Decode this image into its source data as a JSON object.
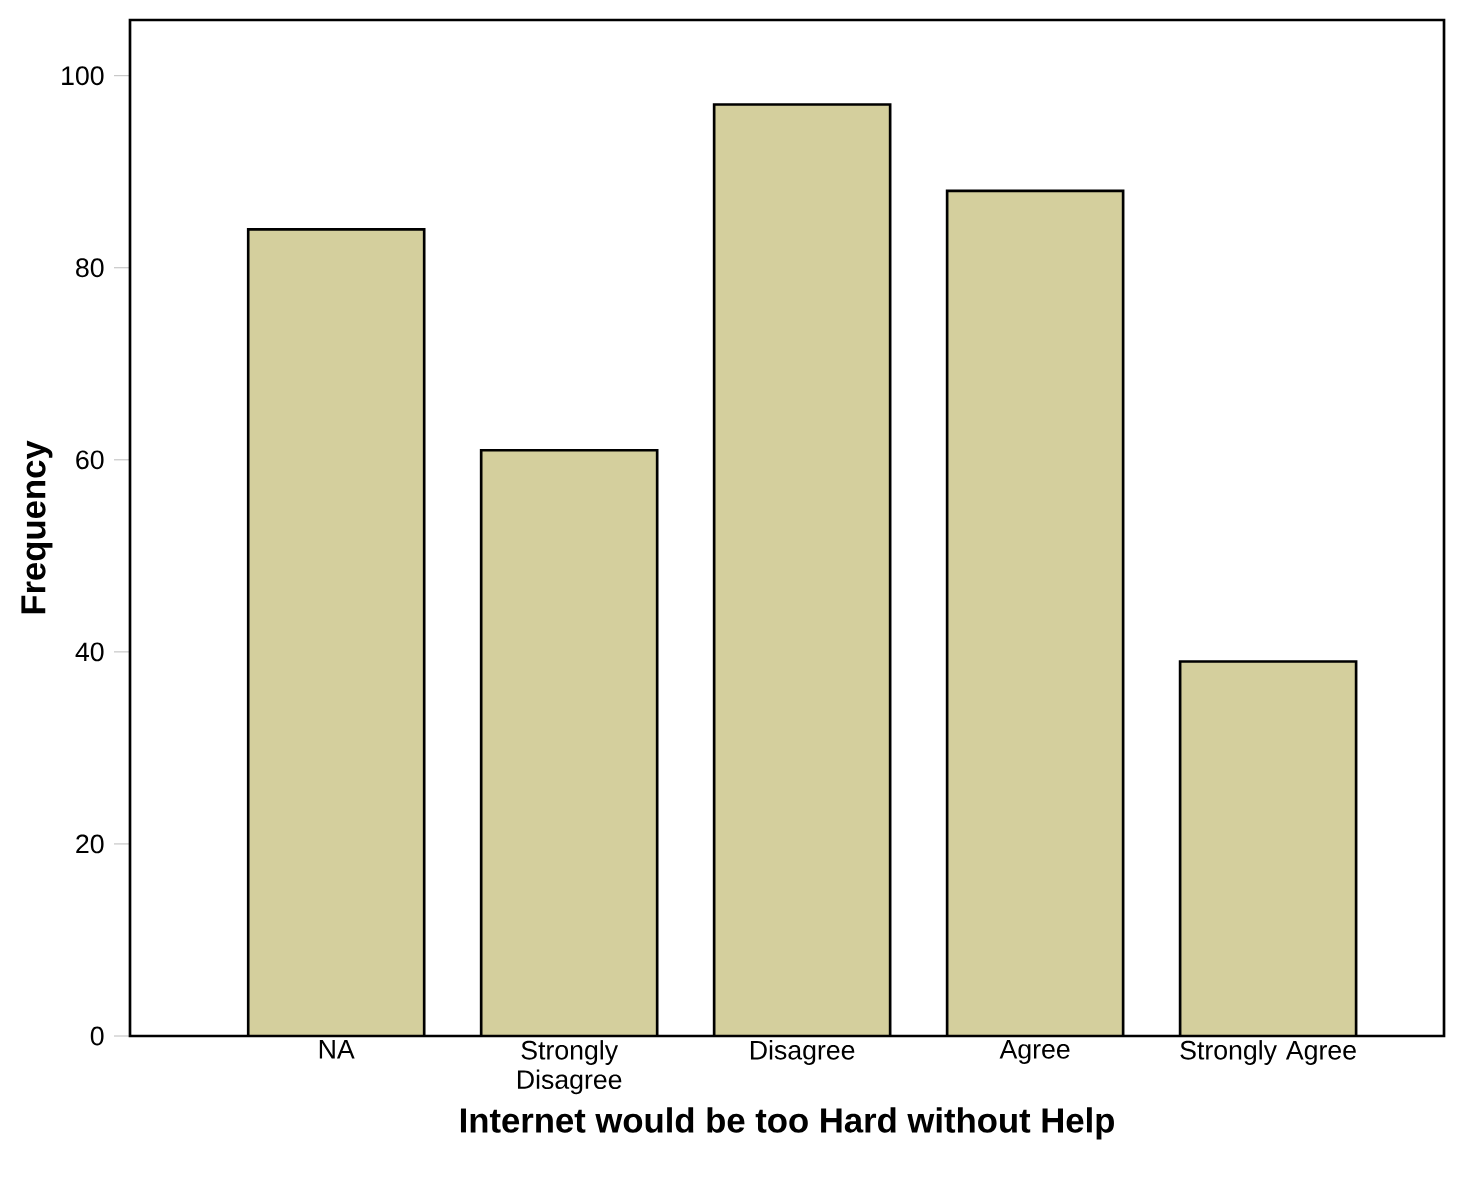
{
  "chart_data": {
    "type": "bar",
    "xlabel": "Internet would be too Hard without Help",
    "ylabel": "Frequency",
    "categories": [
      "NA",
      "Strongly Disagree",
      "Disagree",
      "Agree",
      "Strongly Agree"
    ],
    "values": [
      84,
      61,
      97,
      88,
      39
    ],
    "color": "#d4cf9d",
    "ylim": [
      0,
      105.8
    ],
    "yticks": [
      0,
      20,
      40,
      60,
      80,
      100
    ],
    "grid": false
  }
}
